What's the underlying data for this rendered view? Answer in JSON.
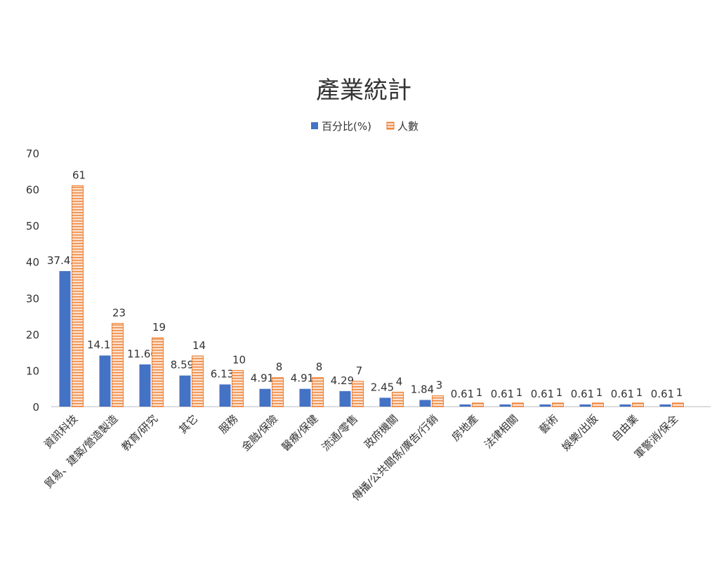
{
  "chart_data": {
    "type": "bar",
    "title": "產業統計",
    "xlabel": "",
    "ylabel": "",
    "ylim": [
      0,
      70
    ],
    "yticks": [
      0,
      10,
      20,
      30,
      40,
      50,
      60,
      70
    ],
    "grid": false,
    "legend": "top-center",
    "categories": [
      "資訊科技",
      "貿易、建築/營造製造",
      "教育/研究",
      "其它",
      "服務",
      "金融/保險",
      "醫療/保健",
      "流通/零售",
      "政府機關",
      "傳播/公共關係/廣告/行銷",
      "房地產",
      "法律相關",
      "藝術",
      "娛樂/出版",
      "自由業",
      "軍警消/保全"
    ],
    "series": [
      {
        "name": "百分比(%)",
        "color": "#4472c4",
        "pattern": "solid",
        "values": [
          37.42,
          14.11,
          11.66,
          8.59,
          6.13,
          4.91,
          4.91,
          4.29,
          2.45,
          1.84,
          0.61,
          0.61,
          0.61,
          0.61,
          0.61,
          0.61
        ]
      },
      {
        "name": "人數",
        "color": "#ed7d31",
        "pattern": "horizontal-stripes",
        "values": [
          61,
          23,
          19,
          14,
          10,
          8,
          8,
          7,
          4,
          3,
          1,
          1,
          1,
          1,
          1,
          1
        ]
      }
    ]
  }
}
